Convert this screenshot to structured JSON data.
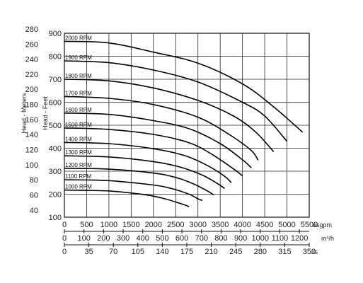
{
  "chart_data": {
    "type": "line",
    "axes": {
      "x_bottom": {
        "label": "usgpm",
        "range": [
          0,
          5500
        ],
        "ticks": [
          0,
          500,
          1000,
          1500,
          2000,
          2500,
          3000,
          3500,
          4000,
          4500,
          5000,
          5500
        ]
      },
      "x_bottom2": {
        "label": "m³/h",
        "range": [
          0,
          1250
        ],
        "ticks": [
          0,
          100,
          200,
          300,
          400,
          500,
          600,
          700,
          800,
          900,
          1000,
          1100,
          1200
        ]
      },
      "x_bottom3": {
        "label": "l/s",
        "range": [
          0,
          350
        ],
        "ticks": [
          0,
          35,
          70,
          105,
          140,
          175,
          210,
          245,
          280,
          315,
          350
        ]
      },
      "y_feet": {
        "label": "Head - Feet",
        "range": [
          100,
          900
        ],
        "ticks": [
          100,
          200,
          300,
          400,
          500,
          600,
          700,
          800,
          900
        ]
      },
      "y_meters": {
        "label": "Head - Meters",
        "range": [
          30.48,
          274.32
        ],
        "ticks": [
          40,
          60,
          80,
          100,
          120,
          140,
          160,
          180,
          200,
          220,
          240,
          260,
          280
        ]
      }
    },
    "grid": true,
    "series": [
      {
        "name": "2000 RPM",
        "x": [
          0,
          1000,
          2000,
          3000,
          4000,
          4700,
          5350
        ],
        "y": [
          865,
          858,
          818,
          770,
          680,
          580,
          470
        ]
      },
      {
        "name": "1900 RPM",
        "x": [
          0,
          1000,
          2000,
          3000,
          4000,
          4500,
          5000
        ],
        "y": [
          780,
          772,
          740,
          688,
          600,
          540,
          430
        ]
      },
      {
        "name": "1800 RPM",
        "x": [
          0,
          1000,
          2000,
          3000,
          3800,
          4300,
          4700
        ],
        "y": [
          700,
          693,
          662,
          608,
          540,
          470,
          385
        ]
      },
      {
        "name": "1700 RPM",
        "x": [
          0,
          1000,
          2000,
          3000,
          3700,
          4200,
          4350
        ],
        "y": [
          625,
          617,
          590,
          535,
          460,
          390,
          348
        ]
      },
      {
        "name": "1600 RPM",
        "x": [
          0,
          1000,
          2000,
          2800,
          3500,
          4000,
          4200
        ],
        "y": [
          553,
          547,
          520,
          485,
          420,
          350,
          315
        ]
      },
      {
        "name": "1500 RPM",
        "x": [
          0,
          1000,
          2000,
          2800,
          3300,
          3800,
          4000
        ],
        "y": [
          488,
          482,
          460,
          424,
          375,
          310,
          280
        ]
      },
      {
        "name": "1400 RPM",
        "x": [
          0,
          1000,
          2000,
          2700,
          3200,
          3600,
          3750
        ],
        "y": [
          425,
          420,
          398,
          368,
          326,
          278,
          250
        ]
      },
      {
        "name": "1300 RPM",
        "x": [
          0,
          1000,
          2000,
          2600,
          3100,
          3450,
          3600
        ],
        "y": [
          367,
          362,
          342,
          318,
          283,
          245,
          225
        ]
      },
      {
        "name": "1200 RPM",
        "x": [
          0,
          1000,
          2000,
          2500,
          2900,
          3250,
          3350
        ],
        "y": [
          313,
          309,
          292,
          273,
          245,
          210,
          197
        ]
      },
      {
        "name": "1100 RPM",
        "x": [
          0,
          1000,
          2000,
          2400,
          2800,
          3000,
          3100
        ],
        "y": [
          263,
          259,
          240,
          225,
          200,
          180,
          173
        ]
      },
      {
        "name": "1000 RPM",
        "x": [
          0,
          1000,
          1800,
          2200,
          2600,
          2750,
          2800
        ],
        "y": [
          218,
          214,
          198,
          183,
          160,
          150,
          145
        ]
      }
    ]
  }
}
